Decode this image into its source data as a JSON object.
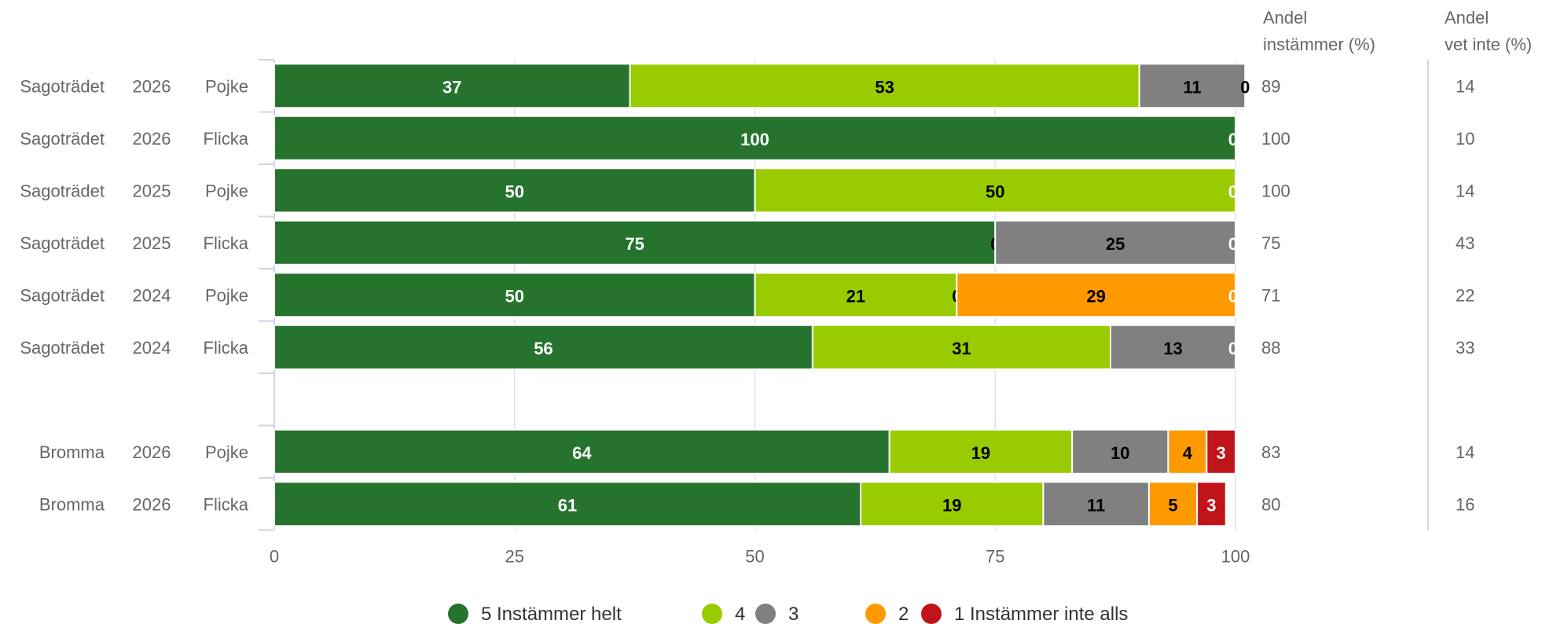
{
  "chart_data": {
    "type": "bar",
    "orientation": "horizontal",
    "stacked": true,
    "xlim": [
      0,
      100
    ],
    "xticks": [
      "0",
      "25",
      "50",
      "75",
      "100"
    ],
    "grid": true,
    "legend_position": "bottom",
    "column_headers": {
      "instammer": [
        "Andel",
        "instämmer (%)"
      ],
      "vet_inte": [
        "Andel",
        "vet inte (%)"
      ]
    },
    "series": [
      {
        "name": "5 Instämmer helt",
        "color": "#26732e"
      },
      {
        "name": "4",
        "color": "#99cc00"
      },
      {
        "name": "3",
        "color": "#808080"
      },
      {
        "name": "2",
        "color": "#ff9900"
      },
      {
        "name": "1 Instämmer inte alls",
        "color": "#c0141b"
      }
    ],
    "rows": [
      {
        "unit": "Sagoträdet",
        "year": "2026",
        "gender": "Pojke",
        "values": [
          37,
          53,
          11,
          0,
          0
        ],
        "labels": [
          "37",
          "53",
          "11",
          "",
          "0"
        ],
        "andel_instammer": "89",
        "andel_vet_inte": "14"
      },
      {
        "unit": "Sagoträdet",
        "year": "2026",
        "gender": "Flicka",
        "values": [
          100,
          0,
          0,
          0,
          0
        ],
        "labels": [
          "100",
          "",
          "",
          "",
          "0"
        ],
        "andel_instammer": "100",
        "andel_vet_inte": "10"
      },
      {
        "unit": "Sagoträdet",
        "year": "2025",
        "gender": "Pojke",
        "values": [
          50,
          50,
          0,
          0,
          0
        ],
        "labels": [
          "50",
          "50",
          "",
          "",
          "0"
        ],
        "andel_instammer": "100",
        "andel_vet_inte": "14"
      },
      {
        "unit": "Sagoträdet",
        "year": "2025",
        "gender": "Flicka",
        "values": [
          75,
          0,
          25,
          0,
          0
        ],
        "labels": [
          "75",
          "0",
          "25",
          "",
          "0"
        ],
        "andel_instammer": "75",
        "andel_vet_inte": "43"
      },
      {
        "unit": "Sagoträdet",
        "year": "2024",
        "gender": "Pojke",
        "values": [
          50,
          21,
          0,
          29,
          0
        ],
        "labels": [
          "50",
          "21",
          "0",
          "29",
          "0"
        ],
        "andel_instammer": "71",
        "andel_vet_inte": "22"
      },
      {
        "unit": "Sagoträdet",
        "year": "2024",
        "gender": "Flicka",
        "values": [
          56,
          31,
          13,
          0,
          0
        ],
        "labels": [
          "56",
          "31",
          "13",
          "",
          "0"
        ],
        "andel_instammer": "88",
        "andel_vet_inte": "33"
      },
      {
        "spacer": true
      },
      {
        "unit": "Bromma",
        "year": "2026",
        "gender": "Pojke",
        "values": [
          64,
          19,
          10,
          4,
          3
        ],
        "labels": [
          "64",
          "19",
          "10",
          "4",
          "3"
        ],
        "andel_instammer": "83",
        "andel_vet_inte": "14"
      },
      {
        "unit": "Bromma",
        "year": "2026",
        "gender": "Flicka",
        "values": [
          61,
          19,
          11,
          5,
          3
        ],
        "labels": [
          "61",
          "19",
          "11",
          "5",
          "3"
        ],
        "andel_instammer": "80",
        "andel_vet_inte": "16"
      }
    ]
  }
}
